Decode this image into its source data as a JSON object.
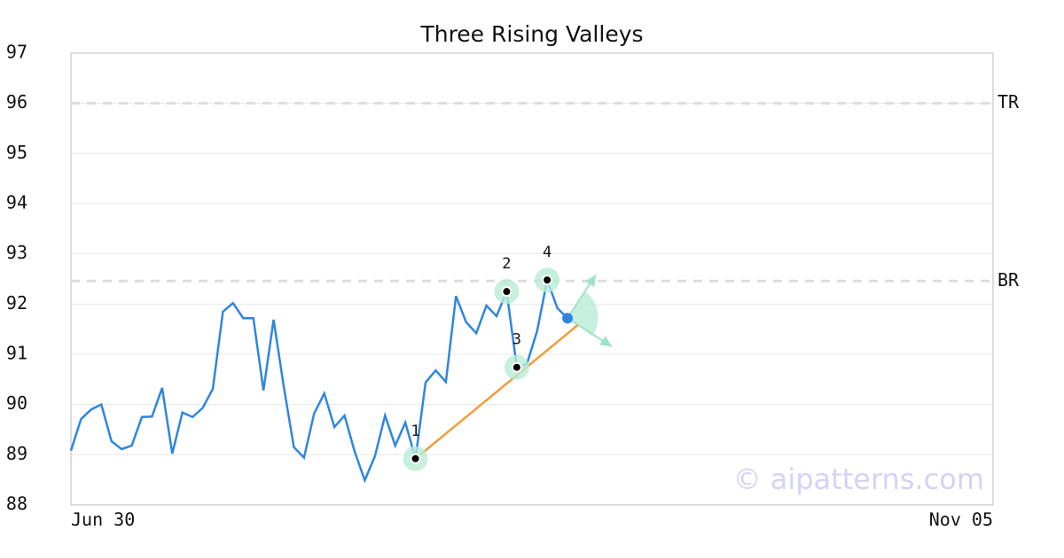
{
  "chart_data": {
    "type": "line",
    "title": "Three Rising Valleys",
    "x": [
      0,
      1,
      2,
      3,
      4,
      5,
      6,
      7,
      8,
      9,
      10,
      11,
      12,
      13,
      14,
      15,
      16,
      17,
      18,
      19,
      20,
      21,
      22,
      23,
      24,
      25,
      26,
      27,
      28,
      29,
      30,
      31,
      32,
      33,
      34,
      35,
      36,
      37,
      38,
      39,
      40,
      41,
      42,
      43,
      44,
      45,
      46,
      47,
      48,
      49
    ],
    "series": [
      {
        "color": "#2f86e0",
        "values": [
          89.08,
          89.71,
          89.9,
          90.0,
          89.27,
          89.11,
          89.18,
          89.75,
          89.76,
          90.33,
          89.02,
          89.84,
          89.75,
          89.93,
          90.31,
          91.85,
          92.02,
          91.72,
          91.72,
          90.28,
          91.69,
          90.36,
          89.15,
          88.94,
          89.82,
          90.22,
          89.55,
          89.78,
          89.06,
          88.49,
          88.97,
          89.78,
          89.18,
          89.64,
          88.92,
          90.44,
          90.68,
          90.45,
          92.16,
          91.64,
          91.42,
          91.97,
          91.76,
          92.25,
          90.74,
          90.81,
          91.46,
          92.48,
          91.92,
          91.72
        ]
      }
    ],
    "xlim": [
      0,
      91
    ],
    "xticks": [
      {
        "value": 0,
        "label": "Jun 30"
      },
      {
        "value": 91,
        "label": "Nov 05"
      }
    ],
    "ylim": [
      88,
      97
    ],
    "yticks": [
      88,
      89,
      90,
      91,
      92,
      93,
      94,
      95,
      96,
      97
    ],
    "grid": true,
    "reference_lines": [
      {
        "label": "TR",
        "value": 96
      },
      {
        "label": "BR",
        "value": 92.46
      }
    ],
    "pattern_points": [
      {
        "label": "1",
        "index": 34
      },
      {
        "label": "2",
        "index": 43
      },
      {
        "label": "3",
        "index": 44
      },
      {
        "label": "4",
        "index": 47
      }
    ],
    "trend_line": {
      "color": "#f39c3c",
      "x": [
        34,
        50
      ],
      "values": [
        88.92,
        91.58
      ]
    },
    "watermark": "© aipatterns.com"
  }
}
